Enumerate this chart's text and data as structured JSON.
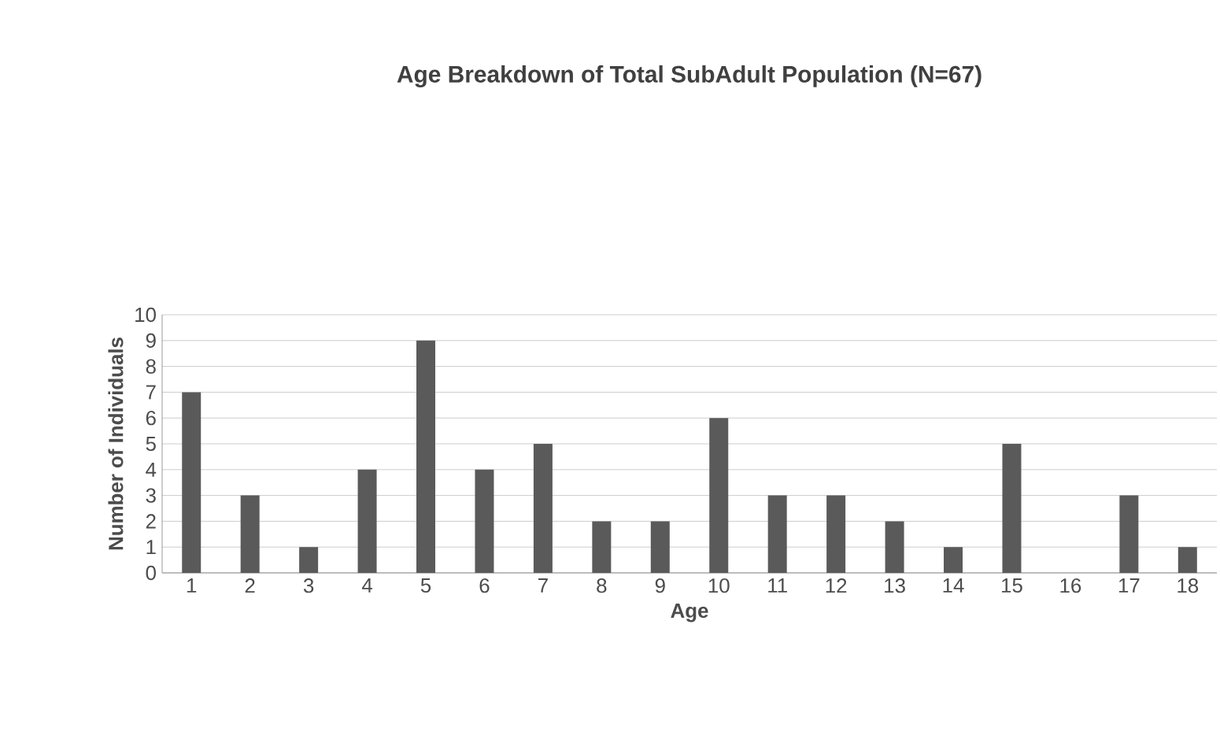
{
  "chart_data": {
    "type": "bar",
    "title": "Age Breakdown of Total SubAdult Population (N=67)",
    "xlabel": "Age",
    "ylabel": "Number of Individuals",
    "categories": [
      "1",
      "2",
      "3",
      "4",
      "5",
      "6",
      "7",
      "8",
      "9",
      "10",
      "11",
      "12",
      "13",
      "14",
      "15",
      "16",
      "17",
      "18"
    ],
    "values": [
      7,
      3,
      1,
      4,
      9,
      4,
      5,
      2,
      2,
      6,
      3,
      3,
      2,
      1,
      5,
      0,
      3,
      1
    ],
    "color": "#5a5a5a",
    "ylim": [
      0,
      10
    ],
    "yticks": [
      0,
      1,
      2,
      3,
      4,
      5,
      6,
      7,
      8,
      9,
      10
    ],
    "grid": "y"
  }
}
